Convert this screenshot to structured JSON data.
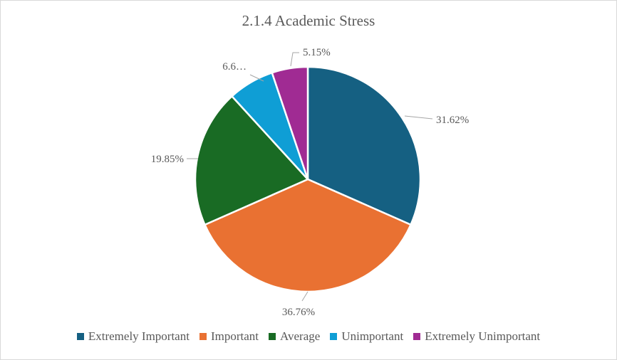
{
  "chart_data": {
    "type": "pie",
    "title": "2.1.4 Academic Stress",
    "categories": [
      "Extremely Important",
      "Important",
      "Average",
      "Unimportant",
      "Extremely Unimportant"
    ],
    "values": [
      31.62,
      36.76,
      19.85,
      6.62,
      5.15
    ],
    "data_labels": [
      "31.62%",
      "36.76%",
      "19.85%",
      "6.6…",
      "5.15%"
    ],
    "colors": [
      "#156082",
      "#e97132",
      "#196b24",
      "#0f9ed5",
      "#a02b93"
    ],
    "legend_position": "bottom"
  }
}
